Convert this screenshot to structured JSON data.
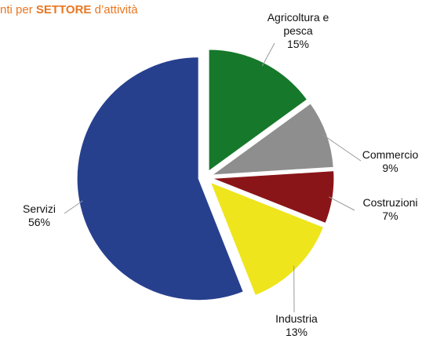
{
  "chart_data": {
    "type": "pie",
    "title_parts": [
      "nti per ",
      "SETTORE",
      " d’attività"
    ],
    "categories": [
      "Agricoltura e pesca",
      "Commercio",
      "Costruzioni",
      "Industria",
      "Servizi"
    ],
    "values": [
      15,
      9,
      7,
      13,
      56
    ],
    "value_labels": [
      "15%",
      "9%",
      "7%",
      "13%",
      "56%"
    ],
    "colors": [
      "#16782a",
      "#8e8e8e",
      "#8a1518",
      "#eee51c",
      "#27408e"
    ]
  }
}
